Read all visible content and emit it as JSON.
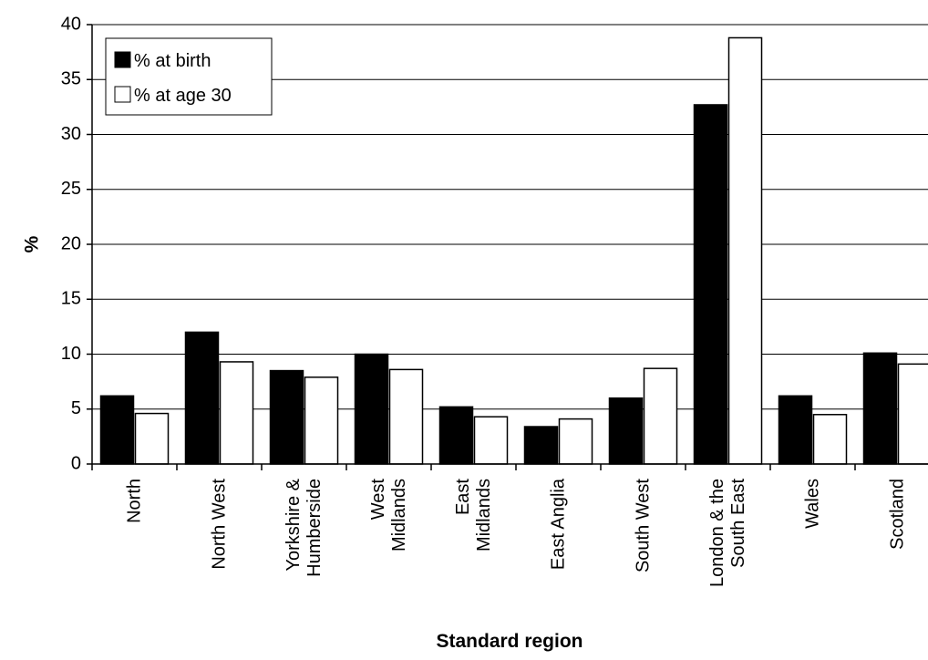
{
  "chart_data": {
    "type": "bar",
    "title": "",
    "xlabel": "Standard region",
    "ylabel": "%",
    "ylim": [
      0,
      40
    ],
    "yticks": [
      0,
      5,
      10,
      15,
      20,
      25,
      30,
      35,
      40
    ],
    "grid": true,
    "legend_position": "top-left",
    "categories": [
      [
        "North"
      ],
      [
        "North West"
      ],
      [
        "Yorkshire &",
        "Humberside"
      ],
      [
        "West",
        "Midlands"
      ],
      [
        "East",
        "Midlands"
      ],
      [
        "East Anglia"
      ],
      [
        "South West"
      ],
      [
        "London & the",
        "South East"
      ],
      [
        "Wales"
      ],
      [
        "Scotland"
      ]
    ],
    "series": [
      {
        "name": "% at birth",
        "color": "#000000",
        "values": [
          6.2,
          12.0,
          8.5,
          10.0,
          5.2,
          3.4,
          6.0,
          32.7,
          6.2,
          10.1
        ]
      },
      {
        "name": "% at age 30",
        "color": "#ffffff",
        "values": [
          4.6,
          9.3,
          7.9,
          8.6,
          4.3,
          4.1,
          8.7,
          38.8,
          4.5,
          9.1
        ]
      }
    ]
  }
}
